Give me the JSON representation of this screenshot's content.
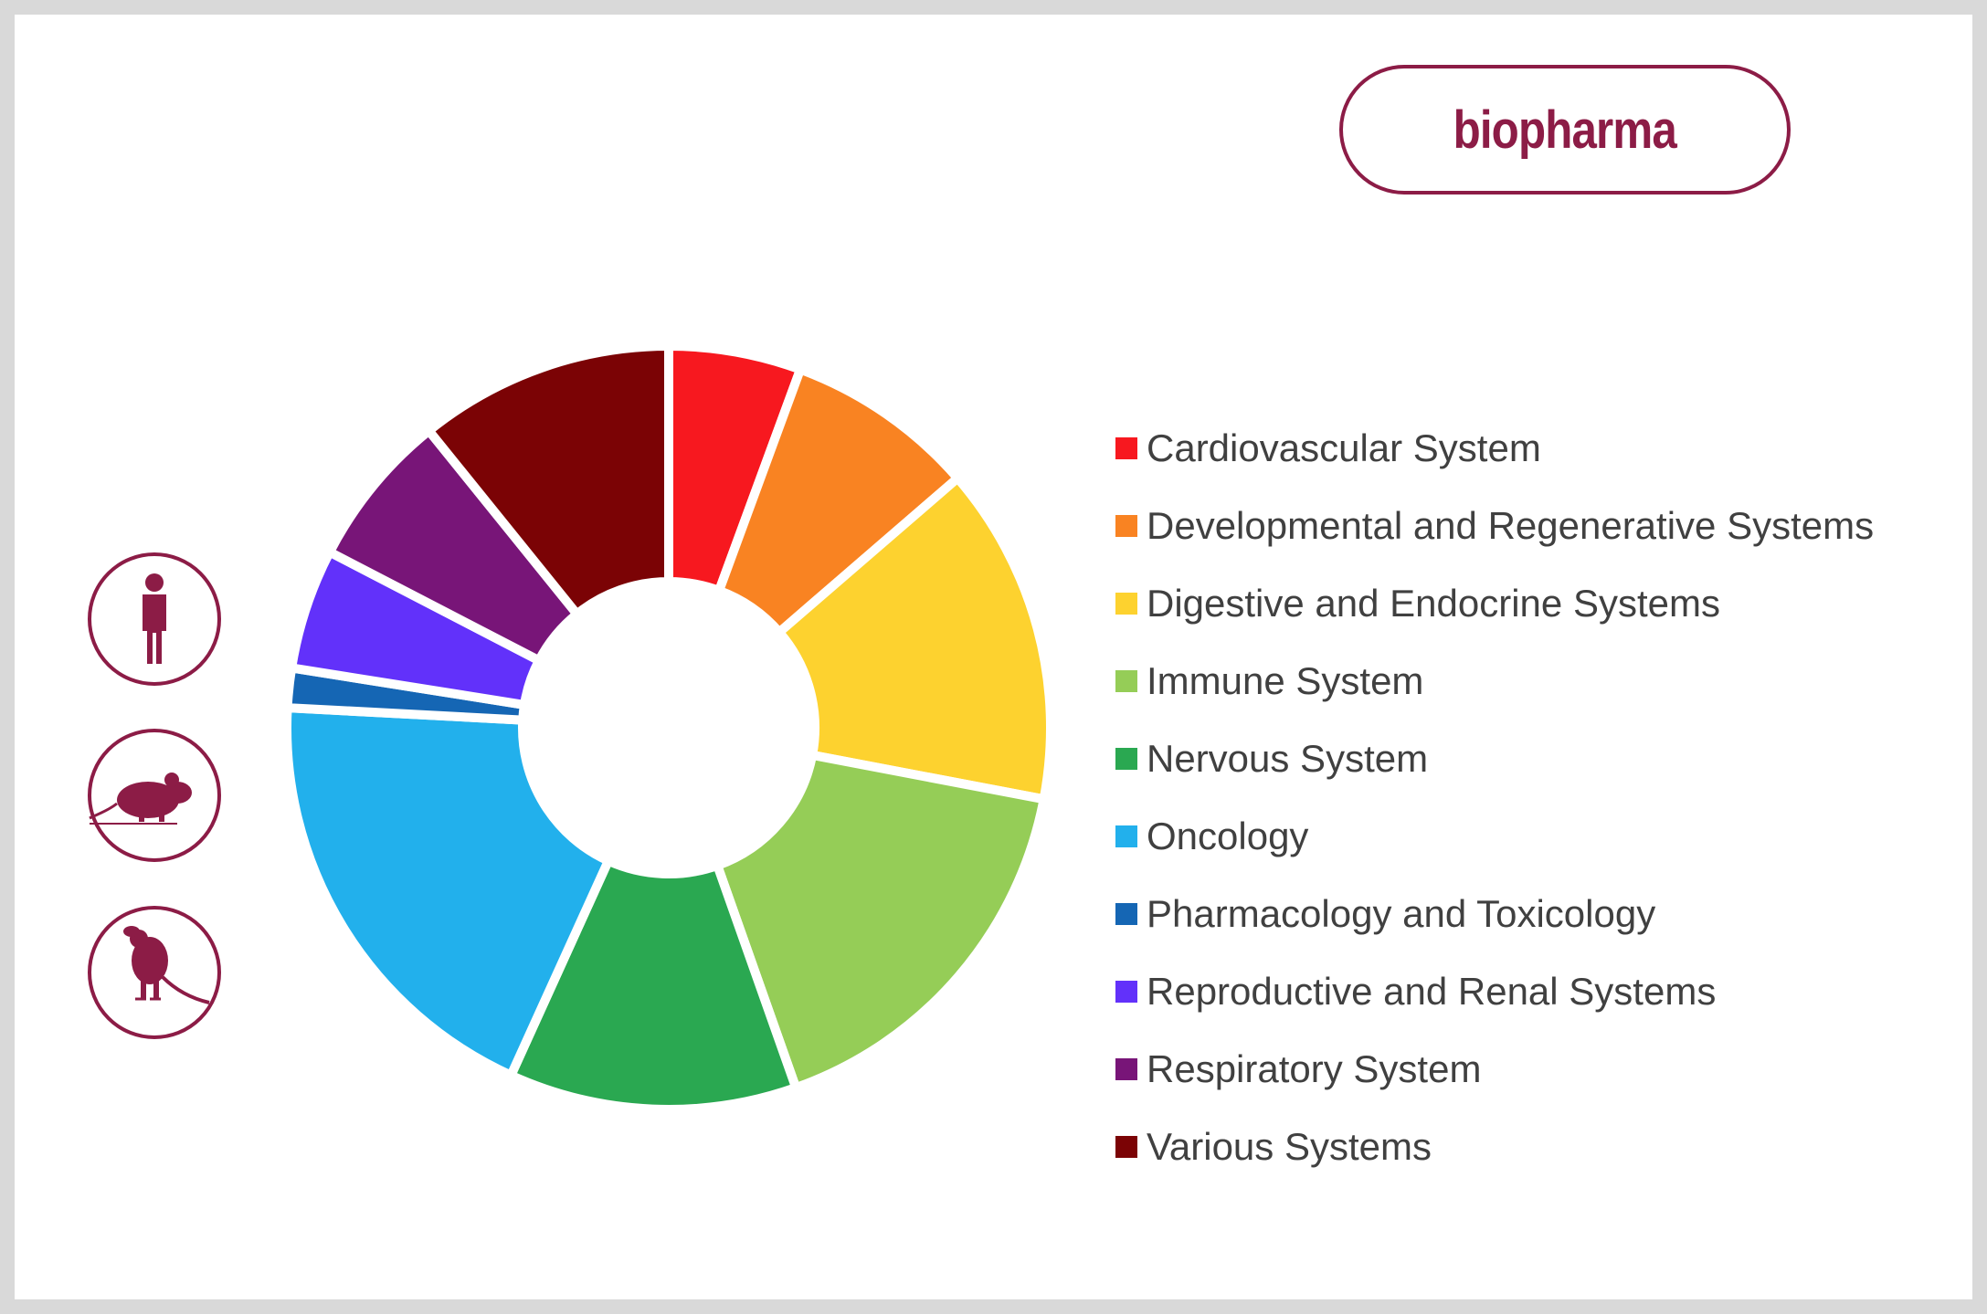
{
  "brand": {
    "label": "biopharma",
    "color": "#8c1c46"
  },
  "species_icons": [
    {
      "name": "human-icon"
    },
    {
      "name": "mouse-icon"
    },
    {
      "name": "rat-icon"
    }
  ],
  "chart_data": {
    "type": "pie",
    "variant": "donut",
    "title": "",
    "legend_position": "right",
    "categories": [
      "Cardiovascular System",
      "Developmental and Regenerative Systems",
      "Digestive and Endocrine Systems",
      "Immune System",
      "Nervous System",
      "Oncology",
      "Pharmacology and Toxicology",
      "Reproductive and Renal Systems",
      "Respiratory System",
      "Various Systems"
    ],
    "values": [
      5.7,
      8.2,
      14.6,
      16.9,
      12.4,
      19.4,
      1.7,
      5.2,
      6.7,
      11.0
    ],
    "colors": [
      "#f7181f",
      "#f98322",
      "#fdd22f",
      "#95cd57",
      "#2aa851",
      "#22b0ec",
      "#1566b4",
      "#6231fa",
      "#781578",
      "#7b0305"
    ]
  }
}
